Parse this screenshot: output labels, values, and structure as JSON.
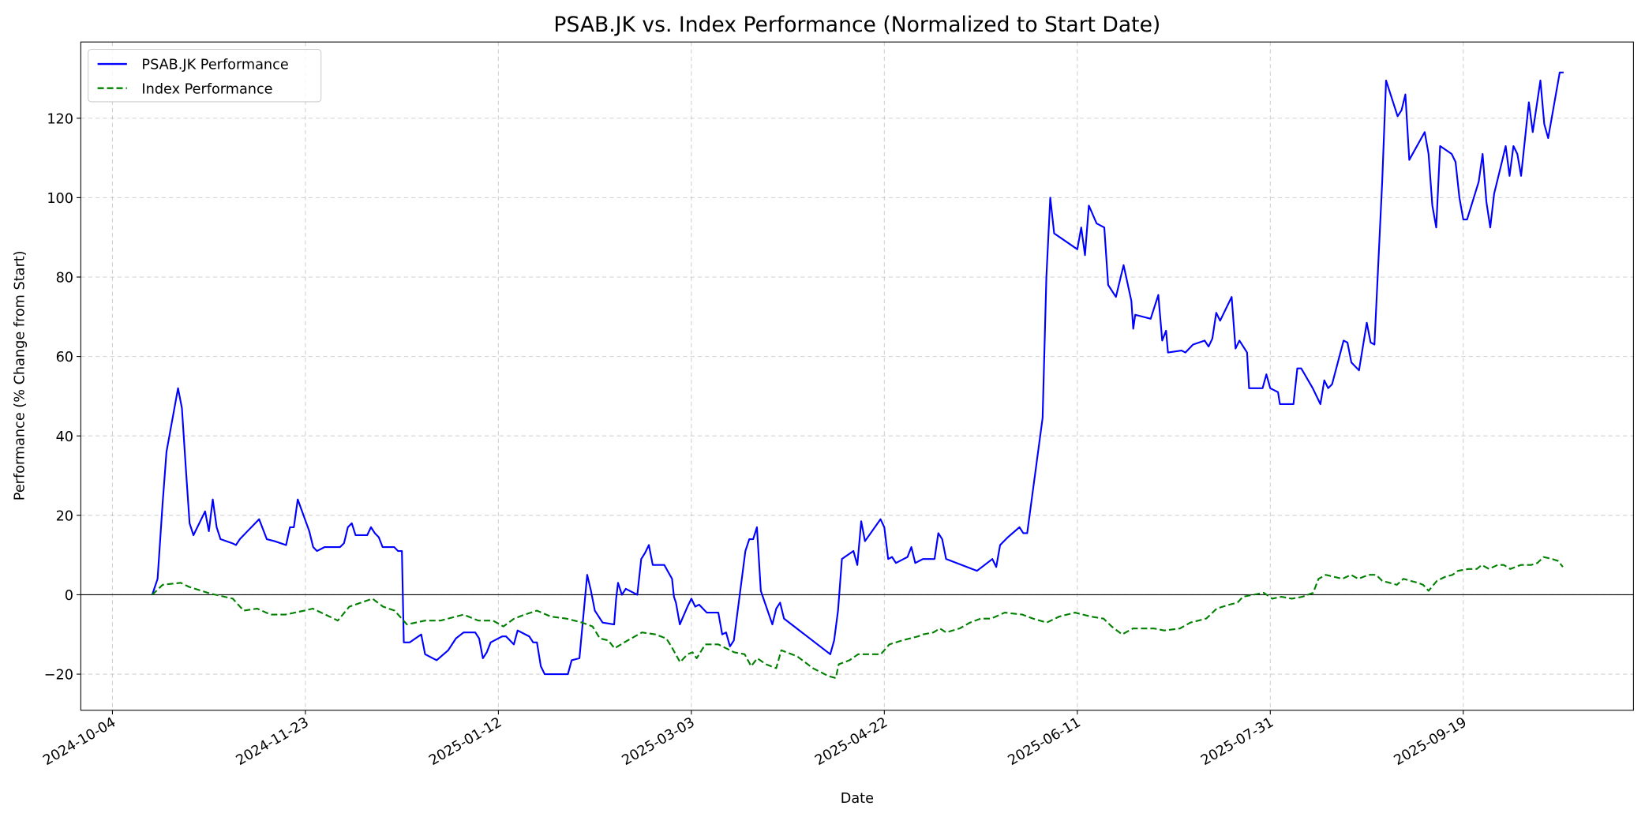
{
  "chart_data": {
    "type": "line",
    "title": "PSAB.JK vs. Index Performance (Normalized to Start Date)",
    "xlabel": "Date",
    "ylabel": "Performance (% Change from Start)",
    "x_unit": "days since 2024-10-04",
    "xlim": [
      -8.2,
      394.1
    ],
    "ylim": [
      -29.1,
      139.2
    ],
    "grid": true,
    "legend_position": "top-left",
    "x_ticks": [
      {
        "day": 0,
        "label": "2024-10-04"
      },
      {
        "day": 50,
        "label": "2024-11-23"
      },
      {
        "day": 100,
        "label": "2025-01-12"
      },
      {
        "day": 150,
        "label": "2025-03-03"
      },
      {
        "day": 200,
        "label": "2025-04-22"
      },
      {
        "day": 250,
        "label": "2025-06-11"
      },
      {
        "day": 300,
        "label": "2025-07-31"
      },
      {
        "day": 350,
        "label": "2025-09-19"
      }
    ],
    "y_ticks": [
      {
        "value": -20,
        "label": "−20"
      },
      {
        "value": 0,
        "label": "0"
      },
      {
        "value": 20,
        "label": "20"
      },
      {
        "value": 40,
        "label": "40"
      },
      {
        "value": 60,
        "label": "60"
      },
      {
        "value": 80,
        "label": "80"
      },
      {
        "value": 100,
        "label": "100"
      },
      {
        "value": 120,
        "label": "120"
      }
    ],
    "reference_line": {
      "value": 0,
      "color": "#000000"
    },
    "series": [
      {
        "name": "PSAB.JK Performance",
        "color": "#0000ff",
        "style": "solid",
        "x": [
          10.3,
          11.7,
          13,
          14,
          17,
          18,
          19,
          20,
          21,
          24,
          25,
          26,
          27,
          28,
          31,
          32,
          33,
          35,
          38,
          40,
          42,
          45,
          46,
          47,
          48,
          51,
          52,
          53,
          55,
          59,
          60,
          61,
          62,
          63,
          66,
          67,
          68,
          69,
          70,
          73,
          74,
          75,
          75.5,
          77,
          80,
          81,
          84,
          87,
          89,
          91,
          94,
          95,
          96,
          97,
          98,
          101,
          102,
          104,
          105,
          108,
          109,
          110,
          111,
          112,
          118,
          119,
          121,
          123,
          124,
          125,
          127,
          130,
          130.5,
          131,
          132,
          133,
          136,
          137,
          138,
          139,
          140,
          143,
          145,
          145.5,
          146,
          147,
          149,
          150,
          151,
          152,
          154,
          157,
          158,
          159,
          160,
          161,
          164,
          165,
          166,
          167,
          168,
          171,
          172,
          173,
          174,
          186,
          187,
          188,
          189,
          192,
          193,
          194,
          195,
          199,
          200,
          201,
          202,
          203,
          206,
          207,
          208,
          210,
          213,
          214,
          215,
          216,
          224,
          228,
          229,
          230,
          232,
          235,
          236,
          237,
          241,
          242,
          243,
          244,
          250,
          251,
          252,
          253,
          255,
          257,
          258,
          260,
          262,
          264,
          264.5,
          265,
          269,
          271,
          272,
          273,
          273.5,
          277,
          278,
          280,
          283,
          284,
          285,
          286,
          287,
          290,
          291,
          292,
          294,
          294.5,
          298,
          299,
          300,
          302,
          302.5,
          306,
          307,
          308,
          311,
          313,
          314,
          315,
          316,
          319,
          320,
          321,
          323,
          325,
          326,
          327,
          329,
          330,
          333,
          334,
          335,
          336,
          340,
          341,
          342,
          343,
          344,
          347,
          348,
          349,
          350,
          351,
          354,
          355,
          356,
          357,
          358,
          360,
          361,
          362,
          363,
          364,
          365,
          367,
          368,
          370,
          371,
          372,
          375,
          376
        ],
        "values": [
          0,
          4,
          23,
          36,
          52,
          47,
          32,
          18,
          15,
          21,
          16,
          24,
          17,
          14,
          13,
          12.5,
          14,
          16,
          19,
          14,
          13.5,
          12.5,
          17,
          17,
          24,
          16,
          12,
          11,
          12,
          12,
          13,
          17,
          18,
          15,
          15,
          17,
          15.5,
          14.5,
          12,
          12,
          11,
          11,
          -12,
          -12,
          -10,
          -15,
          -16.5,
          -14,
          -11,
          -9.5,
          -9.5,
          -11,
          -16,
          -14.5,
          -12,
          -10.5,
          -10.5,
          -12.5,
          -9,
          -10.5,
          -12,
          -12,
          -18,
          -20,
          -20,
          -16.5,
          -16,
          5,
          1,
          -4,
          -7,
          -7.5,
          -1,
          3,
          0,
          1.5,
          0,
          9,
          10.5,
          12.5,
          7.5,
          7.5,
          4,
          -0.5,
          -2,
          -7.5,
          -3,
          -1,
          -3,
          -2.5,
          -4.5,
          -4.5,
          -10,
          -9.5,
          -13,
          -11.5,
          11,
          14,
          14,
          17,
          1,
          -7.5,
          -3.5,
          -2,
          -6,
          -15,
          -11.5,
          -4,
          9,
          11,
          7.5,
          18.5,
          13.5,
          19,
          17,
          9,
          9.5,
          8,
          9.5,
          12,
          8,
          9,
          9,
          15.5,
          14,
          9,
          6,
          9,
          7,
          12.5,
          14.5,
          17,
          15.5,
          15.5,
          44.5,
          80,
          100,
          91,
          87,
          92.5,
          85.5,
          98,
          93.5,
          92.5,
          78,
          75,
          83,
          74,
          67,
          70.5,
          69.5,
          75.5,
          64,
          66.5,
          61,
          61.5,
          61,
          63,
          64,
          62.5,
          64.5,
          71,
          69,
          75,
          62,
          64,
          61,
          52,
          52,
          55.5,
          52,
          51,
          48,
          48,
          57,
          57,
          52,
          48,
          54,
          52,
          53,
          64,
          63.5,
          58.5,
          56.5,
          68.5,
          63.5,
          63,
          104,
          129.5,
          120.5,
          122,
          126,
          109.5,
          116.5,
          111,
          98,
          92.5,
          113,
          111,
          109,
          100,
          94.5,
          94.5,
          104,
          111,
          99,
          92.5,
          101,
          109,
          113,
          105.5,
          113,
          111,
          105.5,
          124,
          116.5,
          129.5,
          118.5,
          115,
          131.5,
          131.5
        ]
      },
      {
        "name": "Index Performance",
        "color": "#008000",
        "style": "dashed",
        "x": [
          10.3,
          13,
          17.7,
          19.8,
          25.3,
          31.2,
          34,
          37.5,
          41,
          44.8,
          49.7,
          51.9,
          55.2,
          58.4,
          61.4,
          67.4,
          70.1,
          73.1,
          76.3,
          81,
          85,
          91,
          94.8,
          98.6,
          101.3,
          104.1,
          106.8,
          110,
          113.6,
          117.6,
          121.7,
          124.4,
          126.3,
          128.5,
          130.1,
          132.6,
          137.2,
          140.7,
          143.5,
          144.8,
          147.1,
          149,
          150.3,
          151.4,
          153.6,
          157,
          161.1,
          163.8,
          165.5,
          167.1,
          169.3,
          172,
          173.3,
          177.4,
          181.5,
          185.5,
          187.4,
          188.2,
          191,
          193.2,
          196.4,
          199.1,
          201.3,
          204.6,
          208.7,
          210,
          212.7,
          214.4,
          216,
          219.5,
          222.2,
          225,
          227.7,
          231.2,
          235.8,
          238.5,
          242.1,
          245.3,
          249.4,
          253.5,
          256.8,
          258.9,
          261.6,
          264.4,
          267,
          269.8,
          272.5,
          276.6,
          279.3,
          283.4,
          286.1,
          289.4,
          291.5,
          292.9,
          295.6,
          298.3,
          300.5,
          302.9,
          305.6,
          308.3,
          311.1,
          312.5,
          314.4,
          316.5,
          318.7,
          320.9,
          322.8,
          325.5,
          327.4,
          329,
          330.9,
          332.8,
          334.5,
          336.3,
          338.3,
          339.6,
          341,
          343.2,
          345.3,
          347.2,
          348.6,
          351.3,
          353.5,
          354.8,
          356.7,
          358.9,
          360.5,
          362.2,
          364.9,
          367.6,
          369.2,
          370.8,
          373,
          374.6,
          375.8
        ],
        "values": [
          0,
          2.5,
          3,
          2,
          0.3,
          -1,
          -4,
          -3.5,
          -5,
          -5,
          -4,
          -3.5,
          -5,
          -6.5,
          -3,
          -1,
          -3,
          -4,
          -7.5,
          -6.5,
          -6.5,
          -5,
          -6.5,
          -6.5,
          -8,
          -6,
          -5,
          -4,
          -5.5,
          -6,
          -7,
          -8,
          -11,
          -11.5,
          -13.5,
          -12,
          -9.5,
          -10,
          -11,
          -13,
          -17,
          -15,
          -14.5,
          -16,
          -12.5,
          -12.5,
          -14.5,
          -15,
          -18,
          -16,
          -17.5,
          -18.5,
          -14,
          -15.5,
          -18.5,
          -20.5,
          -21,
          -17.5,
          -16.5,
          -15,
          -15,
          -15,
          -12.5,
          -11.5,
          -10.5,
          -10,
          -9.5,
          -8.5,
          -9.5,
          -8.5,
          -7,
          -6,
          -6,
          -4.5,
          -5,
          -6,
          -7,
          -5.5,
          -4.5,
          -5.5,
          -6,
          -8,
          -10,
          -8.5,
          -8.5,
          -8.5,
          -9,
          -8.5,
          -7,
          -6,
          -3.5,
          -2.5,
          -2,
          -0.5,
          0,
          0.5,
          -1,
          -0.5,
          -1,
          -0.5,
          0.5,
          4,
          5,
          4.5,
          4,
          5,
          4,
          5,
          5,
          3.5,
          3,
          2.5,
          4,
          3.5,
          3,
          2.5,
          1,
          3.5,
          4.5,
          5,
          6,
          6.5,
          6.5,
          7.5,
          6.5,
          7.5,
          7.5,
          6.5,
          7.5,
          7.5,
          8,
          9.5,
          9,
          8.5,
          7
        ]
      }
    ]
  }
}
